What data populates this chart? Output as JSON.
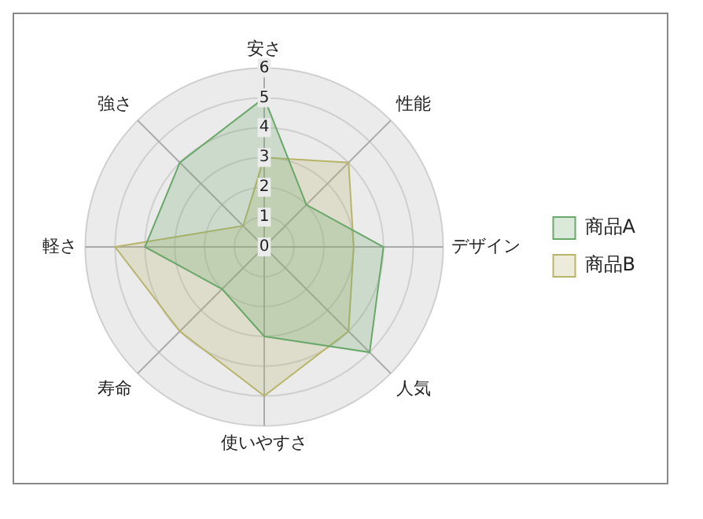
{
  "chart_data": {
    "type": "radar",
    "categories": [
      "安さ",
      "性能",
      "デザイン",
      "人気",
      "使いやすさ",
      "寿命",
      "軽さ",
      "強さ"
    ],
    "series": [
      {
        "name": "商品A",
        "color": "#6aa86a",
        "values": [
          5,
          2,
          4,
          5,
          3,
          2,
          4,
          4
        ]
      },
      {
        "name": "商品B",
        "color": "#b8b46a",
        "values": [
          3,
          4,
          3,
          4,
          5,
          4,
          5,
          1
        ]
      }
    ],
    "ylim": [
      0,
      6
    ],
    "yticks": [
      0,
      1,
      2,
      3,
      4,
      5,
      6
    ],
    "grid": true,
    "legend": "right"
  }
}
